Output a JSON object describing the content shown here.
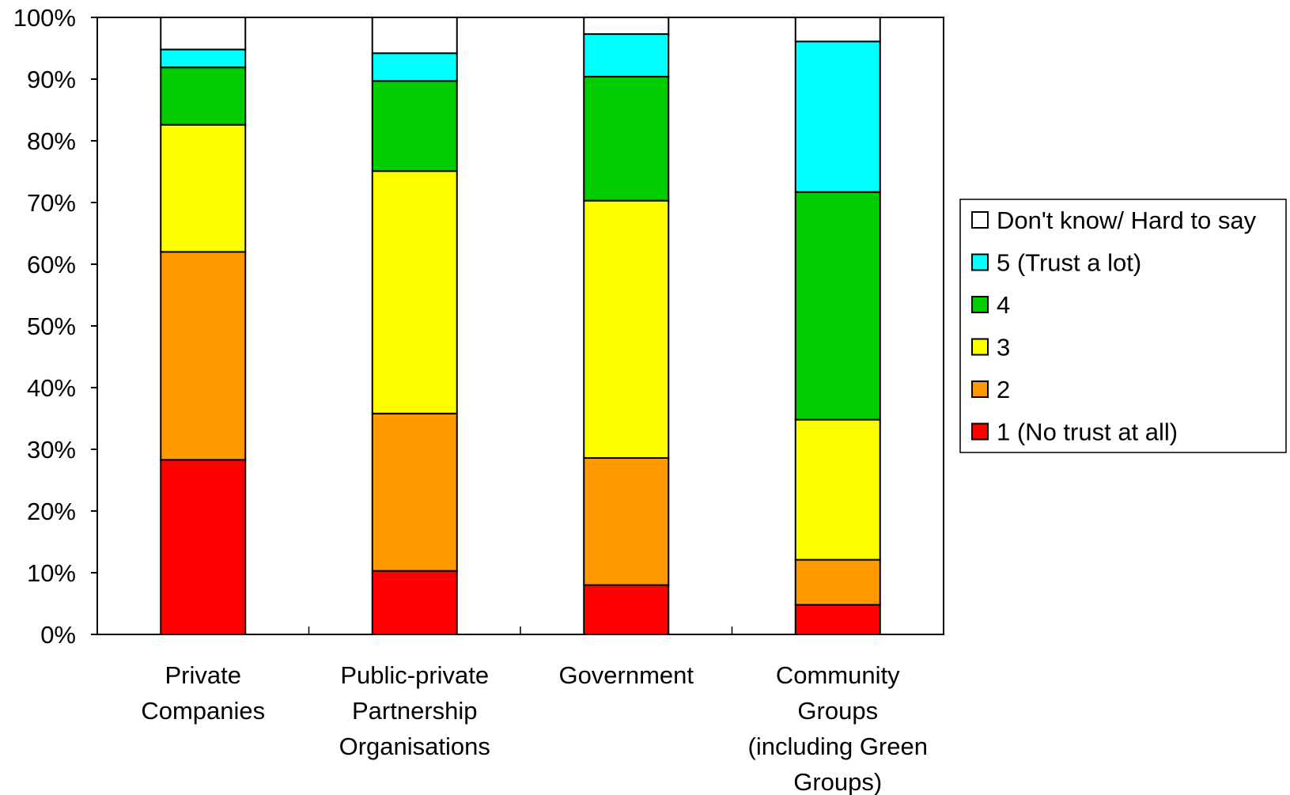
{
  "chart_data": {
    "type": "bar",
    "stacked": true,
    "percent_stacked": true,
    "categories": [
      [
        "Private",
        "Companies"
      ],
      [
        "Public-private",
        "Partnership",
        "Organisations"
      ],
      [
        "Government"
      ],
      [
        "Community",
        "Groups",
        "(including Green",
        "Groups)"
      ]
    ],
    "series": [
      {
        "name": "1 (No trust at all)",
        "color": "#ff0000",
        "values": [
          28.3,
          10.3,
          8.0,
          4.8
        ]
      },
      {
        "name": "2",
        "color": "#ff9900",
        "values": [
          33.7,
          25.5,
          20.6,
          7.3
        ]
      },
      {
        "name": "3",
        "color": "#ffff00",
        "values": [
          20.6,
          39.3,
          41.7,
          22.7
        ]
      },
      {
        "name": "4",
        "color": "#00cc00",
        "values": [
          9.3,
          14.6,
          20.1,
          36.9
        ]
      },
      {
        "name": "5 (Trust a lot)",
        "color": "#00ffff",
        "values": [
          2.9,
          4.5,
          6.9,
          24.4
        ]
      },
      {
        "name": "Don't know/ Hard to say",
        "color": "#ffffff",
        "values": [
          5.2,
          5.8,
          2.7,
          3.9
        ]
      }
    ],
    "legend_order": [
      "Don't know/ Hard to say",
      "5 (Trust a lot)",
      "4",
      "3",
      "2",
      "1 (No trust at all)"
    ],
    "y_ticks": [
      "0%",
      "10%",
      "20%",
      "30%",
      "40%",
      "50%",
      "60%",
      "70%",
      "80%",
      "90%",
      "100%"
    ],
    "ylim": [
      0,
      100
    ],
    "title": "",
    "xlabel": "",
    "ylabel": "",
    "grid": false,
    "legend_position": "right"
  }
}
